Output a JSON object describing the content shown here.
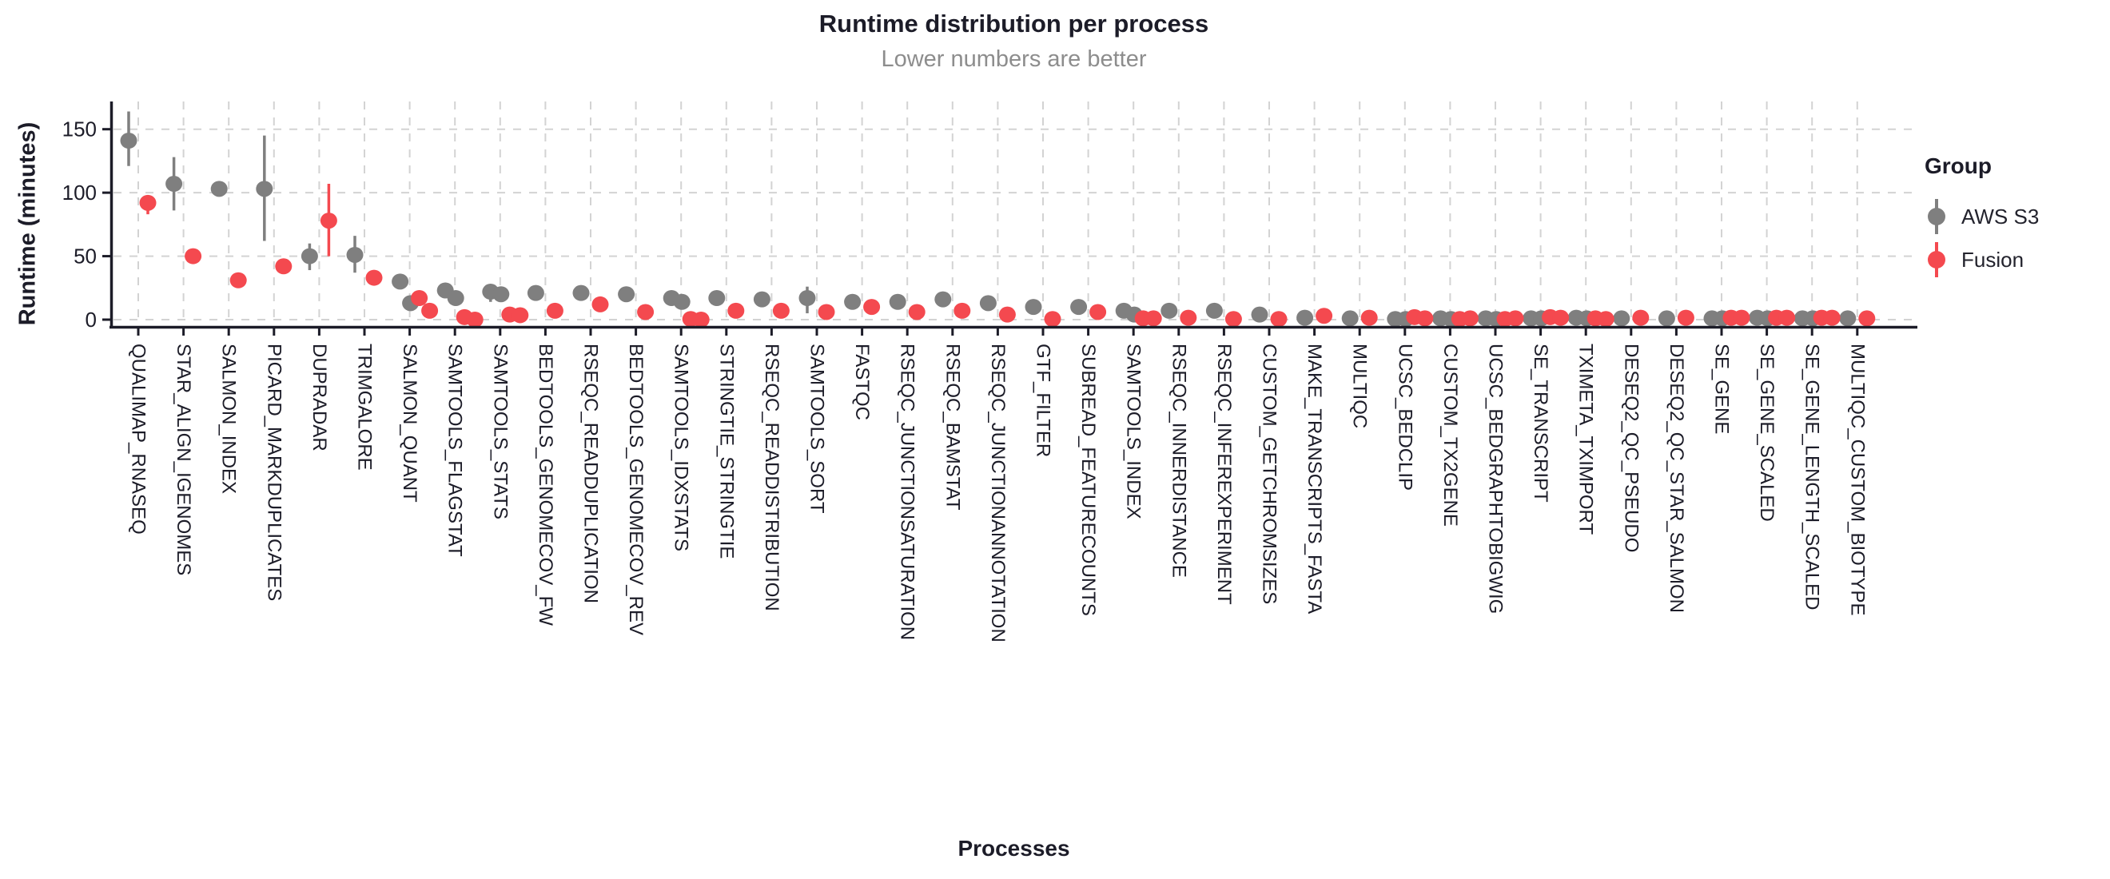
{
  "colors": {
    "text": "#1c1c28",
    "subtitle_text": "#8d8d8d",
    "grid": "#d3d3d3",
    "axis": "#1c1c28",
    "aws_s3": "#7f7f7f",
    "fusion": "#f4494f"
  },
  "chart_data": {
    "type": "scatter",
    "subtype": "dodged pointrange, categorical x, jittered replicate points",
    "title": "Runtime distribution per process",
    "subtitle": "Lower numbers are better",
    "xlabel": "Processes",
    "ylabel": "Runtime (minutes)",
    "yticks": [
      0,
      50,
      100,
      150
    ],
    "ylim": [
      -6,
      172
    ],
    "grid": "dashed horizontal and vertical",
    "legend": {
      "title": "Group",
      "position": "right",
      "items": [
        {
          "label": "AWS S3",
          "color": "#7f7f7f"
        },
        {
          "label": "Fusion",
          "color": "#f4494f"
        }
      ]
    },
    "value_unit": "minutes",
    "processes": [
      {
        "name": "QUALIMAP_RNASEQ",
        "aws": {
          "v": 141,
          "lo": 121,
          "hi": 164
        },
        "fusion": {
          "v": 92,
          "lo": 83,
          "hi": 98
        }
      },
      {
        "name": "STAR_ALIGN_IGENOMES",
        "aws": {
          "v": 107,
          "lo": 86,
          "hi": 128
        },
        "fusion": {
          "v": 50
        }
      },
      {
        "name": "SALMON_INDEX",
        "aws": {
          "v": 103
        },
        "fusion": {
          "v": 31
        }
      },
      {
        "name": "PICARD_MARKDUPLICATES",
        "aws": {
          "v": 103,
          "lo": 62,
          "hi": 145
        },
        "fusion": {
          "v": 42
        }
      },
      {
        "name": "DUPRADAR",
        "aws": {
          "v": 50,
          "lo": 39,
          "hi": 60
        },
        "fusion": {
          "v": 78,
          "lo": 50,
          "hi": 107
        }
      },
      {
        "name": "TRIMGALORE",
        "aws": {
          "v": 51,
          "lo": 37,
          "hi": 66
        },
        "fusion": {
          "v": 33
        }
      },
      {
        "name": "SALMON_QUANT",
        "aws": {
          "v": 30,
          "v2": 13
        },
        "fusion": {
          "v": 17,
          "v2": 7
        }
      },
      {
        "name": "SAMTOOLS_FLAGSTAT",
        "aws": {
          "v": 23,
          "v2": 17
        },
        "fusion": {
          "v": 2,
          "v2": 0
        }
      },
      {
        "name": "SAMTOOLS_STATS",
        "aws": {
          "v": 22,
          "v2": 20,
          "lo": 14,
          "hi": 27
        },
        "fusion": {
          "v": 4,
          "v2": 3.5
        }
      },
      {
        "name": "BEDTOOLS_GENOMECOV_FW",
        "aws": {
          "v": 21
        },
        "fusion": {
          "v": 7
        }
      },
      {
        "name": "RSEQC_READDUPLICATION",
        "aws": {
          "v": 21
        },
        "fusion": {
          "v": 12
        }
      },
      {
        "name": "BEDTOOLS_GENOMECOV_REV",
        "aws": {
          "v": 20
        },
        "fusion": {
          "v": 6
        }
      },
      {
        "name": "SAMTOOLS_IDXSTATS",
        "aws": {
          "v": 17,
          "v2": 14
        },
        "fusion": {
          "v": 0.5,
          "v2": 0
        }
      },
      {
        "name": "STRINGTIE_STRINGTIE",
        "aws": {
          "v": 17
        },
        "fusion": {
          "v": 7
        }
      },
      {
        "name": "RSEQC_READDISTRIBUTION",
        "aws": {
          "v": 16
        },
        "fusion": {
          "v": 7
        }
      },
      {
        "name": "SAMTOOLS_SORT",
        "aws": {
          "v": 17,
          "lo": 5,
          "hi": 26
        },
        "fusion": {
          "v": 6
        }
      },
      {
        "name": "FASTQC",
        "aws": {
          "v": 14
        },
        "fusion": {
          "v": 10
        }
      },
      {
        "name": "RSEQC_JUNCTIONSATURATION",
        "aws": {
          "v": 14
        },
        "fusion": {
          "v": 6
        }
      },
      {
        "name": "RSEQC_BAMSTAT",
        "aws": {
          "v": 16
        },
        "fusion": {
          "v": 7
        }
      },
      {
        "name": "RSEQC_JUNCTIONANNOTATION",
        "aws": {
          "v": 13
        },
        "fusion": {
          "v": 4
        }
      },
      {
        "name": "GTF_FILTER",
        "aws": {
          "v": 10
        },
        "fusion": {
          "v": 0.5
        }
      },
      {
        "name": "SUBREAD_FEATURECOUNTS",
        "aws": {
          "v": 10
        },
        "fusion": {
          "v": 6
        }
      },
      {
        "name": "SAMTOOLS_INDEX",
        "aws": {
          "v": 7,
          "v2": 4
        },
        "fusion": {
          "v": 1,
          "v2": 1
        }
      },
      {
        "name": "RSEQC_INNERDISTANCE",
        "aws": {
          "v": 7
        },
        "fusion": {
          "v": 1.5
        }
      },
      {
        "name": "RSEQC_INFEREXPERIMENT",
        "aws": {
          "v": 7
        },
        "fusion": {
          "v": 0.5
        }
      },
      {
        "name": "CUSTOM_GETCHROMSIZES",
        "aws": {
          "v": 4
        },
        "fusion": {
          "v": 0.5
        }
      },
      {
        "name": "MAKE_TRANSCRIPTS_FASTA",
        "aws": {
          "v": 1.5
        },
        "fusion": {
          "v": 3
        }
      },
      {
        "name": "MULTIQC",
        "aws": {
          "v": 1
        },
        "fusion": {
          "v": 1.5
        }
      },
      {
        "name": "UCSC_BEDCLIP",
        "aws": {
          "v": 0.5,
          "v2": 0.5
        },
        "fusion": {
          "v": 2,
          "v2": 1
        }
      },
      {
        "name": "CUSTOM_TX2GENE",
        "aws": {
          "v": 1,
          "v2": 0.5
        },
        "fusion": {
          "v": 0.5,
          "v2": 1
        }
      },
      {
        "name": "UCSC_BEDGRAPHTOBIGWIG",
        "aws": {
          "v": 1,
          "v2": 0.5
        },
        "fusion": {
          "v": 0.5,
          "v2": 1
        }
      },
      {
        "name": "SE_TRANSCRIPT",
        "aws": {
          "v": 1,
          "v2": 1
        },
        "fusion": {
          "v": 2,
          "v2": 1.5
        }
      },
      {
        "name": "TXIMETA_TXIMPORT",
        "aws": {
          "v": 1.5,
          "v2": 1
        },
        "fusion": {
          "v": 1,
          "v2": 0.5
        }
      },
      {
        "name": "DESEQ2_QC_PSEUDO",
        "aws": {
          "v": 1
        },
        "fusion": {
          "v": 1.5
        }
      },
      {
        "name": "DESEQ2_QC_STAR_SALMON",
        "aws": {
          "v": 1
        },
        "fusion": {
          "v": 1.5
        }
      },
      {
        "name": "SE_GENE",
        "aws": {
          "v": 1,
          "v2": 1
        },
        "fusion": {
          "v": 1.5,
          "v2": 1.5
        }
      },
      {
        "name": "SE_GENE_SCALED",
        "aws": {
          "v": 1.5,
          "v2": 1
        },
        "fusion": {
          "v": 1.5,
          "v2": 1.5
        }
      },
      {
        "name": "SE_GENE_LENGTH_SCALED",
        "aws": {
          "v": 1,
          "v2": 1
        },
        "fusion": {
          "v": 1.5,
          "v2": 1.5
        }
      },
      {
        "name": "MULTIQC_CUSTOM_BIOTYPE",
        "aws": {
          "v": 1
        },
        "fusion": {
          "v": 1
        }
      }
    ]
  }
}
